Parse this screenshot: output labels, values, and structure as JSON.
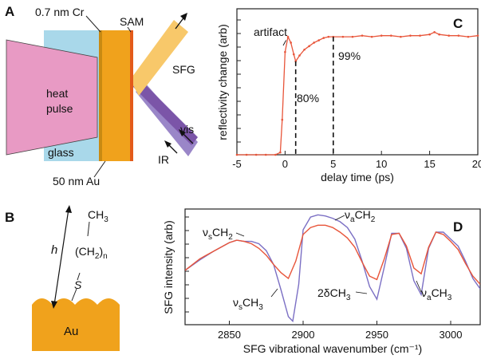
{
  "panel_labels": {
    "a": "A",
    "b": "B",
    "c": "C",
    "d": "D"
  },
  "panel_a": {
    "cr_label": "0.7 nm Cr",
    "sam_label": "SAM",
    "heat_line1": "heat",
    "heat_line2": "pulse",
    "glass_label": "glass",
    "au_label": "50 nm Au",
    "sfg_label": "SFG",
    "vis_label": "vis",
    "ir_label": "IR",
    "colors": {
      "heat": "#e89ac4",
      "glass": "#a9d8ea",
      "gold": "#f0a21c",
      "sfg": "#f8c86a",
      "vis": "#7b55a8",
      "ir": "#9a86c8"
    }
  },
  "panel_b": {
    "ch3": "CH",
    "ch3_sub": "3",
    "ch2_open": "(CH",
    "ch2_sub": "2",
    "ch2_close": ")",
    "ch2_n": "n",
    "s_label": "S",
    "h_label": "h",
    "au_label": "Au"
  },
  "chart_data": [
    {
      "type": "line",
      "panel": "C",
      "xlabel": "delay time (ps)",
      "ylabel": "reflectivity change (arb)",
      "xlim": [
        -5,
        20
      ],
      "ylim": [
        0,
        1.25
      ],
      "xticks": [
        -5,
        0,
        5,
        10,
        15,
        20
      ],
      "x_tick_labels": [
        "-5",
        "0",
        "5",
        "10",
        "15",
        "20"
      ],
      "series": [
        {
          "color": "#e8553a",
          "x": [
            -5,
            -4,
            -3,
            -2,
            -1,
            -0.5,
            -0.3,
            0,
            0.3,
            0.6,
            0.9,
            1.1,
            1.5,
            2,
            2.5,
            3,
            3.5,
            4,
            4.5,
            5,
            6,
            7,
            8,
            9,
            10,
            11,
            12,
            13,
            14,
            15,
            15.5,
            16,
            17,
            18,
            19,
            20
          ],
          "y": [
            0,
            0,
            0,
            0,
            0,
            0.02,
            0.3,
            0.88,
            1.01,
            0.96,
            0.86,
            0.8,
            0.85,
            0.9,
            0.93,
            0.96,
            0.98,
            1.0,
            1.01,
            1.01,
            1.01,
            1.01,
            1.02,
            1.01,
            1.02,
            1.02,
            1.01,
            1.02,
            1.02,
            1.03,
            1.05,
            1.03,
            1.02,
            1.02,
            1.01,
            1.02
          ]
        }
      ],
      "annotations": [
        {
          "text": "artifact",
          "x": 0.3
        },
        {
          "text": "80%",
          "x": 1.1
        },
        {
          "text": "99%",
          "x": 5
        }
      ]
    },
    {
      "type": "line",
      "panel": "D",
      "xlabel": "SFG vibrational wavenumber (cm⁻¹)",
      "ylabel": "SFG intensity (arb)",
      "xlim": [
        2820,
        3020
      ],
      "ylim": [
        0,
        1
      ],
      "xticks": [
        2850,
        2900,
        2950,
        3000
      ],
      "x_tick_labels": [
        "2850",
        "2900",
        "2950",
        "3000"
      ],
      "series": [
        {
          "color": "#7b6fc4",
          "x": [
            2820,
            2830,
            2840,
            2850,
            2855,
            2860,
            2865,
            2870,
            2875,
            2880,
            2885,
            2890,
            2893,
            2897,
            2900,
            2905,
            2910,
            2915,
            2920,
            2925,
            2930,
            2935,
            2940,
            2945,
            2950,
            2955,
            2960,
            2965,
            2970,
            2975,
            2980,
            2985,
            2990,
            2995,
            3000,
            3005,
            3010,
            3015,
            3020
          ],
          "y": [
            0.47,
            0.56,
            0.64,
            0.71,
            0.73,
            0.72,
            0.72,
            0.7,
            0.64,
            0.52,
            0.3,
            0.07,
            0.03,
            0.35,
            0.82,
            0.93,
            0.95,
            0.94,
            0.92,
            0.89,
            0.84,
            0.74,
            0.55,
            0.33,
            0.22,
            0.5,
            0.79,
            0.79,
            0.66,
            0.38,
            0.26,
            0.66,
            0.8,
            0.8,
            0.74,
            0.68,
            0.55,
            0.4,
            0.31
          ]
        },
        {
          "color": "#e8553a",
          "x": [
            2820,
            2830,
            2840,
            2850,
            2855,
            2860,
            2865,
            2870,
            2875,
            2880,
            2885,
            2890,
            2895,
            2900,
            2905,
            2910,
            2915,
            2920,
            2925,
            2930,
            2935,
            2940,
            2945,
            2950,
            2955,
            2960,
            2965,
            2970,
            2975,
            2980,
            2985,
            2990,
            2995,
            3000,
            3005,
            3010,
            3015,
            3020
          ],
          "y": [
            0.47,
            0.57,
            0.64,
            0.71,
            0.73,
            0.72,
            0.7,
            0.66,
            0.6,
            0.52,
            0.45,
            0.4,
            0.55,
            0.78,
            0.84,
            0.86,
            0.86,
            0.84,
            0.8,
            0.75,
            0.67,
            0.54,
            0.42,
            0.39,
            0.57,
            0.78,
            0.79,
            0.68,
            0.49,
            0.44,
            0.67,
            0.8,
            0.78,
            0.72,
            0.65,
            0.53,
            0.42,
            0.35
          ]
        }
      ],
      "annotations": [
        {
          "text": "ν",
          "sub": "s",
          "rest": "CH",
          "rest_sub": "2"
        },
        {
          "text": "ν",
          "sub": "a",
          "rest": "CH",
          "rest_sub": "2"
        },
        {
          "text": "ν",
          "sub": "s",
          "rest": "CH",
          "rest_sub": "3"
        },
        {
          "text": "2δCH",
          "sub": "",
          "rest": "",
          "rest_sub": "3"
        },
        {
          "text": "ν",
          "sub": "a",
          "rest": "CH",
          "rest_sub": "3"
        }
      ]
    }
  ]
}
